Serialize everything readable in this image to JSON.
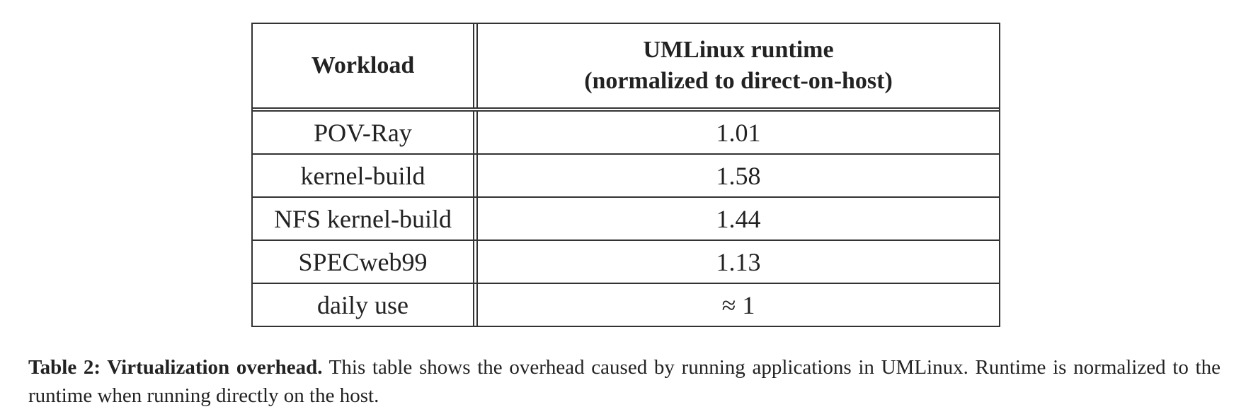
{
  "table": {
    "headers": {
      "workload": "Workload",
      "runtime_line1": "UMLinux runtime",
      "runtime_line2": "(normalized to direct-on-host)"
    },
    "rows": [
      {
        "workload": "POV-Ray",
        "runtime": "1.01"
      },
      {
        "workload": "kernel-build",
        "runtime": "1.58"
      },
      {
        "workload": "NFS kernel-build",
        "runtime": "1.44"
      },
      {
        "workload": "SPECweb99",
        "runtime": "1.13"
      },
      {
        "workload": "daily use",
        "runtime": "≈ 1"
      }
    ]
  },
  "caption": {
    "label": "Table 2: Virtualization overhead.",
    "text": " This table shows the overhead caused by running applications in UMLinux. Runtime is normalized to the runtime when running directly on the host."
  }
}
